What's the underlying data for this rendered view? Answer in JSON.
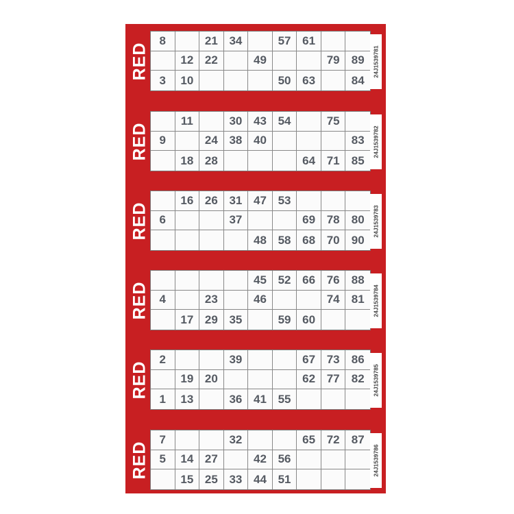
{
  "sheet": {
    "color": "#c81f22",
    "tickets": [
      {
        "label": "RED",
        "serial": "24J1539781",
        "rows": [
          [
            "8",
            "",
            "21",
            "34",
            "",
            "57",
            "61",
            "",
            ""
          ],
          [
            "",
            "12",
            "22",
            "",
            "49",
            "",
            "",
            "79",
            "89"
          ],
          [
            "3",
            "10",
            "",
            "",
            "",
            "50",
            "63",
            "",
            "84"
          ]
        ]
      },
      {
        "label": "RED",
        "serial": "24J1539782",
        "rows": [
          [
            "",
            "11",
            "",
            "30",
            "43",
            "54",
            "",
            "75",
            ""
          ],
          [
            "9",
            "",
            "24",
            "38",
            "40",
            "",
            "",
            "",
            "83"
          ],
          [
            "",
            "18",
            "28",
            "",
            "",
            "",
            "64",
            "71",
            "85"
          ]
        ]
      },
      {
        "label": "RED",
        "serial": "24J1539783",
        "rows": [
          [
            "",
            "16",
            "26",
            "31",
            "47",
            "53",
            "",
            "",
            ""
          ],
          [
            "6",
            "",
            "",
            "37",
            "",
            "",
            "69",
            "78",
            "80"
          ],
          [
            "",
            "",
            "",
            "",
            "48",
            "58",
            "68",
            "70",
            "90"
          ]
        ]
      },
      {
        "label": "RED",
        "serial": "24J1539784",
        "rows": [
          [
            "",
            "",
            "",
            "",
            "45",
            "52",
            "66",
            "76",
            "88"
          ],
          [
            "4",
            "",
            "23",
            "",
            "46",
            "",
            "",
            "74",
            "81"
          ],
          [
            "",
            "17",
            "29",
            "35",
            "",
            "59",
            "60",
            "",
            ""
          ]
        ]
      },
      {
        "label": "RED",
        "serial": "24J1539785",
        "rows": [
          [
            "2",
            "",
            "",
            "39",
            "",
            "",
            "67",
            "73",
            "86"
          ],
          [
            "",
            "19",
            "20",
            "",
            "",
            "",
            "62",
            "77",
            "82"
          ],
          [
            "1",
            "13",
            "",
            "36",
            "41",
            "55",
            "",
            "",
            ""
          ]
        ]
      },
      {
        "label": "RED",
        "serial": "24J1539786",
        "rows": [
          [
            "7",
            "",
            "",
            "32",
            "",
            "",
            "65",
            "72",
            "87"
          ],
          [
            "5",
            "14",
            "27",
            "",
            "42",
            "56",
            "",
            "",
            ""
          ],
          [
            "",
            "15",
            "25",
            "33",
            "44",
            "51",
            "",
            "",
            ""
          ]
        ]
      }
    ]
  }
}
